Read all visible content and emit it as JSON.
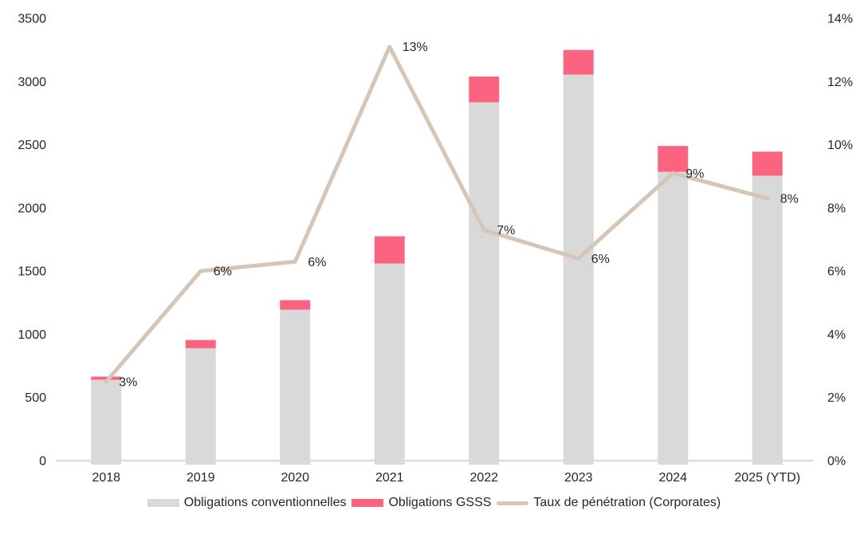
{
  "chart_data": {
    "type": "combo-stacked-bar-line",
    "title": "",
    "categories": [
      "2018",
      "2019",
      "2020",
      "2021",
      "2022",
      "2023",
      "2024",
      "2025 (YTD)"
    ],
    "series": [
      {
        "name": "Obligations conventionnelles",
        "type": "bar",
        "stack": "bonds",
        "axis": "left",
        "color": "#d9d9d9",
        "values": [
          640,
          890,
          1195,
          1560,
          2835,
          3055,
          2285,
          2255
        ]
      },
      {
        "name": "Obligations GSSS",
        "type": "bar",
        "stack": "bonds",
        "axis": "left",
        "color": "#fb6380",
        "values": [
          25,
          65,
          75,
          215,
          205,
          195,
          205,
          190
        ]
      },
      {
        "name": "Taux de pénétration (Corporates)",
        "type": "line",
        "axis": "right",
        "color": "#d5c6b8",
        "values": [
          2.5,
          6.0,
          6.3,
          13.1,
          7.3,
          6.4,
          9.1,
          8.3
        ],
        "point_labels": [
          "3%",
          "6%",
          "6%",
          "13%",
          "7%",
          "6%",
          "9%",
          "8%"
        ]
      }
    ],
    "stacked_totals": [
      665,
      955,
      1270,
      1775,
      3040,
      3250,
      2490,
      2445
    ],
    "left_axis": {
      "min": 0,
      "max": 3500,
      "step": 500,
      "ticks": [
        "3500",
        "3000",
        "2500",
        "2000",
        "1500",
        "1000",
        "500",
        "0"
      ]
    },
    "right_axis": {
      "min": 0,
      "max": 14,
      "step": 2,
      "ticks": [
        "14%",
        "12%",
        "10%",
        "8%",
        "6%",
        "4%",
        "2%",
        "0%"
      ]
    },
    "legend_position": "bottom",
    "grid": false,
    "colors": {
      "axis_line": "#cfdfe8",
      "text": "#262626",
      "background": "#ffffff"
    }
  }
}
